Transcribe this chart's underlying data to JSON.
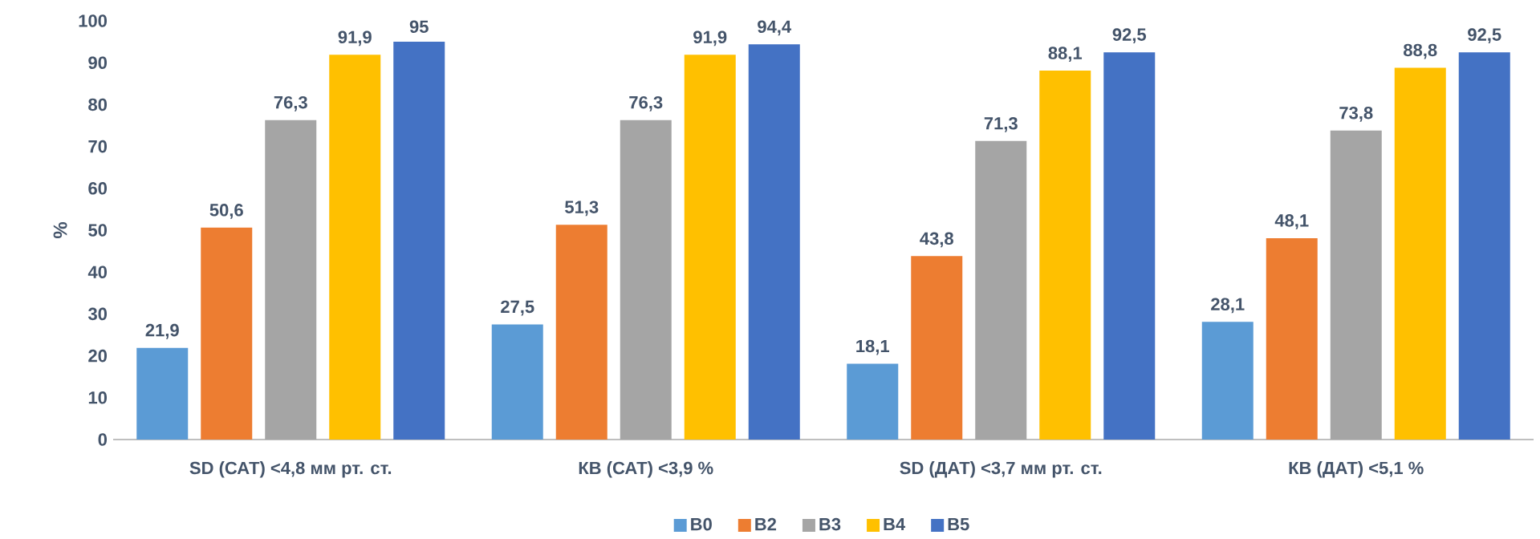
{
  "chart_data": {
    "type": "bar",
    "ylabel": "%",
    "categories": [
      "SD (САТ) <4,8 мм рт. ст.",
      "КВ (САТ) <3,9 %",
      "SD (ДАТ) <3,7 мм рт. ст.",
      "КВ (ДАТ) <5,1 %"
    ],
    "series": [
      {
        "name": "B0",
        "color": "#5b9bd5",
        "values": [
          21.9,
          27.5,
          18.1,
          28.1
        ],
        "value_labels": [
          "21,9",
          "27,5",
          "18,1",
          "28,1"
        ]
      },
      {
        "name": "B2",
        "color": "#ed7d31",
        "values": [
          50.6,
          51.3,
          43.8,
          48.1
        ],
        "value_labels": [
          "50,6",
          "51,3",
          "43,8",
          "48,1"
        ]
      },
      {
        "name": "B3",
        "color": "#a5a5a5",
        "values": [
          76.3,
          76.3,
          71.3,
          73.8
        ],
        "value_labels": [
          "76,3",
          "76,3",
          "71,3",
          "73,8"
        ]
      },
      {
        "name": "B4",
        "color": "#ffc000",
        "values": [
          91.9,
          91.9,
          88.1,
          88.8
        ],
        "value_labels": [
          "91,9",
          "91,9",
          "88,1",
          "88,8"
        ]
      },
      {
        "name": "B5",
        "color": "#4472c4",
        "values": [
          95,
          94.4,
          92.5,
          92.5
        ],
        "value_labels": [
          "95",
          "94,4",
          "92,5",
          "92,5"
        ]
      }
    ],
    "ylim": [
      0,
      100
    ],
    "yticks": [
      0,
      10,
      20,
      30,
      40,
      50,
      60,
      70,
      80,
      90,
      100
    ],
    "legend": "bottom"
  }
}
